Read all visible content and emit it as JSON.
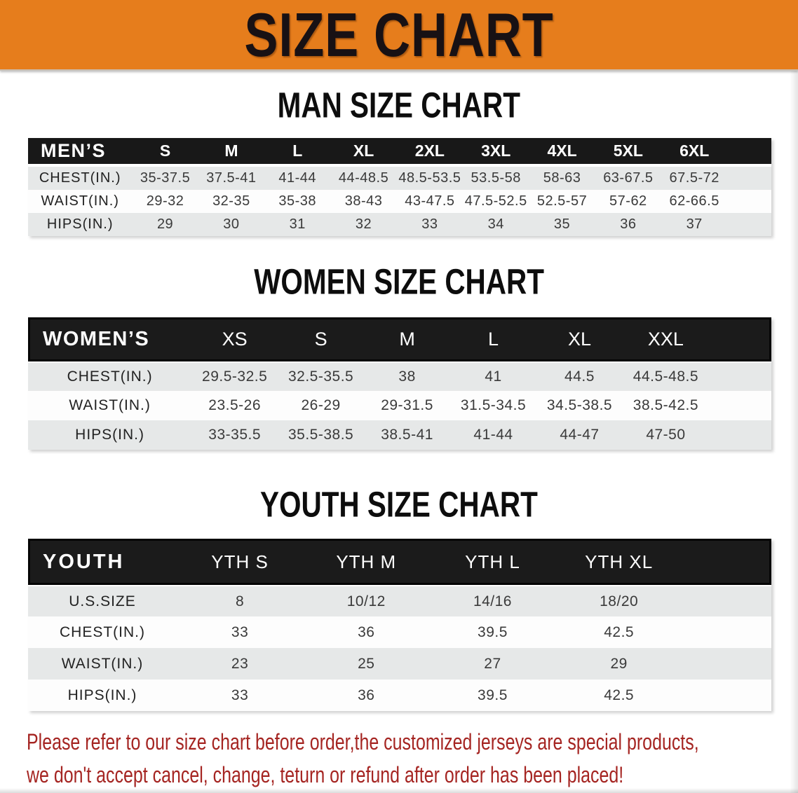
{
  "banner": {
    "title": "SIZE CHART"
  },
  "colors": {
    "banner_bg": "#e67d1c",
    "banner_text": "#181114",
    "header_bg": "#181818",
    "header_text": "#ffffff",
    "row_gray": "#e6e8e8",
    "row_white": "#fdfdfd",
    "label_text": "#222222",
    "value_text": "#3a3a3a",
    "disclaimer": "#a52522"
  },
  "sections": [
    {
      "heading": "MAN SIZE CHART",
      "table": {
        "header_label": "MEN’S",
        "columns": [
          "S",
          "M",
          "L",
          "XL",
          "2XL",
          "3XL",
          "4XL",
          "5XL",
          "6XL"
        ],
        "rows": [
          {
            "label": "CHEST(IN.)",
            "values": [
              "35-37.5",
              "37.5-41",
              "41-44",
              "44-48.5",
              "48.5-53.5",
              "53.5-58",
              "58-63",
              "63-67.5",
              "67.5-72"
            ]
          },
          {
            "label": "WAIST(IN.)",
            "values": [
              "29-32",
              "32-35",
              "35-38",
              "38-43",
              "43-47.5",
              "47.5-52.5",
              "52.5-57",
              "57-62",
              "62-66.5"
            ]
          },
          {
            "label": "HIPS(IN.)",
            "values": [
              "29",
              "30",
              "31",
              "32",
              "33",
              "34",
              "35",
              "36",
              "37"
            ]
          }
        ]
      }
    },
    {
      "heading": "WOMEN SIZE CHART",
      "table": {
        "header_label": "WOMEN’S",
        "columns": [
          "XS",
          "S",
          "M",
          "L",
          "XL",
          "XXL"
        ],
        "rows": [
          {
            "label": "CHEST(IN.)",
            "values": [
              "29.5-32.5",
              "32.5-35.5",
              "38",
              "41",
              "44.5",
              "44.5-48.5"
            ]
          },
          {
            "label": "WAIST(IN.)",
            "values": [
              "23.5-26",
              "26-29",
              "29-31.5",
              "31.5-34.5",
              "34.5-38.5",
              "38.5-42.5"
            ]
          },
          {
            "label": "HIPS(IN.)",
            "values": [
              "33-35.5",
              "35.5-38.5",
              "38.5-41",
              "41-44",
              "44-47",
              "47-50"
            ]
          }
        ]
      }
    },
    {
      "heading": "YOUTH SIZE CHART",
      "table": {
        "header_label": "YOUTH",
        "columns": [
          "YTH S",
          "YTH M",
          "YTH L",
          "YTH XL"
        ],
        "rows": [
          {
            "label": "U.S.SIZE",
            "values": [
              "8",
              "10/12",
              "14/16",
              "18/20"
            ]
          },
          {
            "label": "CHEST(IN.)",
            "values": [
              "33",
              "36",
              "39.5",
              "42.5"
            ]
          },
          {
            "label": "WAIST(IN.)",
            "values": [
              "23",
              "25",
              "27",
              "29"
            ]
          },
          {
            "label": "HIPS(IN.)",
            "values": [
              "33",
              "36",
              "39.5",
              "42.5"
            ]
          }
        ]
      }
    }
  ],
  "disclaimer": {
    "lines": [
      "Please refer to our size chart before order,the customized jerseys are special products,",
      "we don't accept cancel, change, teturn or refund after order has been placed!"
    ]
  }
}
